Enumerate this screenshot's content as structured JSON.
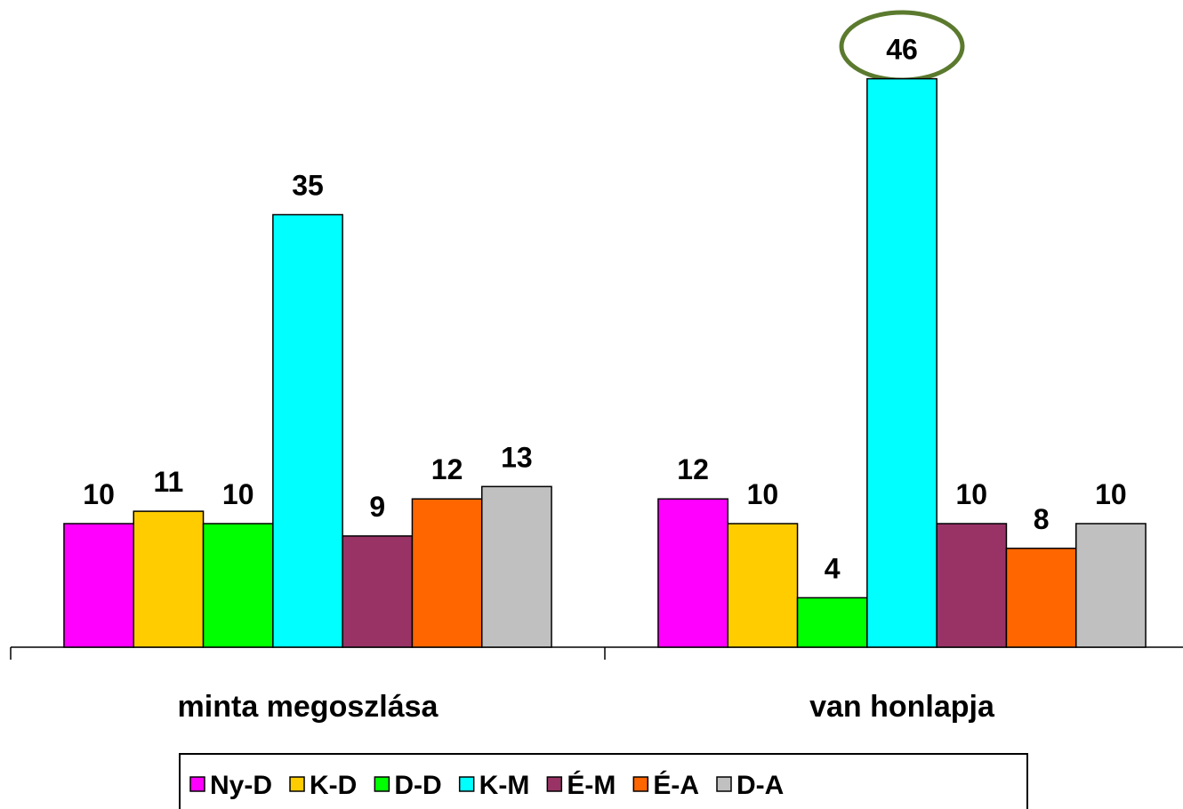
{
  "chart_data": {
    "type": "bar",
    "categories": [
      "minta megoszlása",
      "van honlapja"
    ],
    "series": [
      {
        "name": "Ny-D",
        "color": "#ff00ff",
        "values": [
          10,
          12
        ]
      },
      {
        "name": "K-D",
        "color": "#ffcc00",
        "values": [
          11,
          10
        ]
      },
      {
        "name": "D-D",
        "color": "#00ff00",
        "values": [
          10,
          4
        ]
      },
      {
        "name": "K-M",
        "color": "#00ffff",
        "values": [
          35,
          46
        ]
      },
      {
        "name": "É-M",
        "color": "#993366",
        "values": [
          9,
          10
        ]
      },
      {
        "name": "É-A",
        "color": "#ff6600",
        "values": [
          12,
          8
        ]
      },
      {
        "name": "D-A",
        "color": "#c0c0c0",
        "values": [
          13,
          10
        ]
      }
    ],
    "legend": "bottom"
  }
}
